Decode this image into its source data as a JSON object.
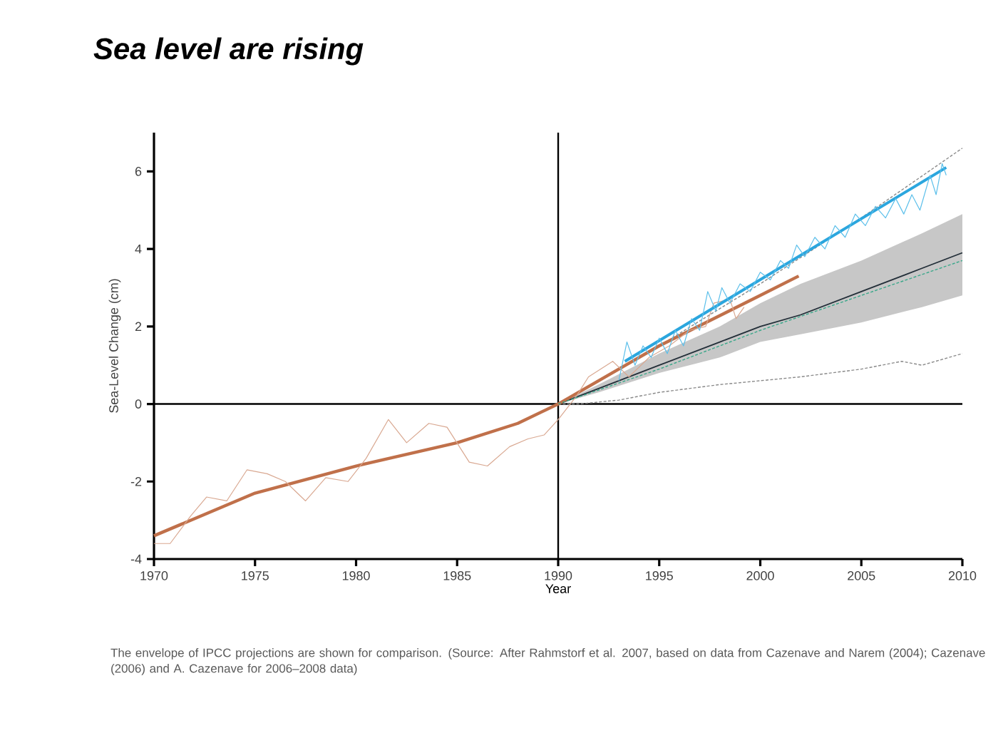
{
  "chart_data": {
    "type": "line",
    "title": "Sea level are rising",
    "xlabel": "Year",
    "ylabel": "Sea-Level Change (cm)",
    "xlim": [
      1970,
      2010
    ],
    "xticks": [
      1970,
      1975,
      1980,
      1985,
      1990,
      1995,
      2000,
      2005,
      2010
    ],
    "ylim": [
      -4,
      7
    ],
    "yticks": [
      -4,
      -2,
      0,
      2,
      4,
      6
    ],
    "ref_lines": [
      {
        "axis": "y",
        "value": 0,
        "color": "#000000"
      },
      {
        "axis": "x",
        "value": 1990,
        "color": "#000000"
      }
    ],
    "annotations": [
      "The envelope of IPCC projections are shown for comparison. (Source: After Rahmstorf et al. 2007, based on data from Cazenave and Narem (2004); Cazenave (2006) and A. Cazenave for 2006–2008 data)"
    ],
    "series": [
      {
        "color": "#222e38",
        "x": [
          1990,
          1992,
          1995,
          1998,
          2000,
          2002,
          2005,
          2008,
          2010
        ],
        "values": [
          0,
          0.4,
          1.0,
          1.6,
          2.0,
          2.3,
          2.9,
          3.5,
          3.9
        ],
        "lower": [
          0,
          0.3,
          0.8,
          1.2,
          1.6,
          1.8,
          2.1,
          2.5,
          2.8
        ],
        "upper": [
          0,
          0.5,
          1.3,
          2.0,
          2.6,
          3.1,
          3.7,
          4.4,
          4.9
        ]
      },
      {
        "color": "#8a8a8a",
        "line_style": "dashed",
        "x": [
          1990,
          1995,
          2000,
          2005,
          2010
        ],
        "values": [
          0,
          1.5,
          3.1,
          4.8,
          6.6
        ]
      },
      {
        "color": "#8a8a8a",
        "line_style": "dashed",
        "x": [
          1990,
          1991,
          1993,
          1995,
          1998,
          2000,
          2002,
          2005,
          2007,
          2008,
          2010
        ],
        "values": [
          0,
          0,
          0.1,
          0.3,
          0.5,
          0.6,
          0.7,
          0.9,
          1.1,
          1.0,
          1.3
        ]
      },
      {
        "color": "#c0704a",
        "x": [
          1970,
          1975,
          1980,
          1985,
          1988,
          1990,
          1995,
          2000,
          2001.9
        ],
        "values": [
          -3.4,
          -2.3,
          -1.6,
          -1.0,
          -0.5,
          0,
          1.5,
          2.8,
          3.3
        ]
      },
      {
        "color": "#d9a891",
        "x": [
          1970,
          1970.8,
          1971.8,
          1972.6,
          1973.6,
          1974.6,
          1975.6,
          1976.5,
          1977.5,
          1978.5,
          1979.6,
          1980.5,
          1981.6,
          1982.5,
          1983.6,
          1984.5,
          1985.6,
          1986.5,
          1987.6,
          1988.5,
          1989.3,
          1990.0,
          1990.9,
          1991.5,
          1992.7,
          1993.5,
          1994.5,
          1995.5,
          1996.5,
          1997.3,
          1997.7,
          1998.5,
          1998.8,
          1999.2
        ],
        "values": [
          -3.6,
          -3.6,
          -2.9,
          -2.4,
          -2.5,
          -1.7,
          -1.8,
          -2.0,
          -2.5,
          -1.9,
          -2.0,
          -1.4,
          -0.4,
          -1.0,
          -0.5,
          -0.6,
          -1.5,
          -1.6,
          -1.1,
          -0.9,
          -0.8,
          -0.4,
          0.2,
          0.7,
          1.1,
          0.7,
          1.2,
          1.5,
          1.9,
          2.0,
          2.6,
          2.7,
          2.2,
          2.5
        ]
      },
      {
        "color": "#2ba6de",
        "x": [
          1993.3,
          2009.2
        ],
        "values": [
          1.1,
          6.1
        ]
      },
      {
        "color": "#5bbfea",
        "x": [
          1993.0,
          1993.4,
          1993.8,
          1994.2,
          1994.6,
          1995.0,
          1995.4,
          1995.8,
          1996.2,
          1996.6,
          1997.0,
          1997.4,
          1997.8,
          1998.1,
          1998.5,
          1999.0,
          1999.5,
          2000.0,
          2000.5,
          2001.0,
          2001.4,
          2001.8,
          2002.2,
          2002.7,
          2003.2,
          2003.7,
          2004.2,
          2004.7,
          2005.2,
          2005.7,
          2006.2,
          2006.7,
          2007.1,
          2007.5,
          2007.9,
          2008.4,
          2008.7,
          2009.0,
          2009.2
        ],
        "values": [
          0.6,
          1.6,
          1.0,
          1.5,
          1.2,
          1.7,
          1.3,
          1.9,
          1.5,
          2.2,
          1.9,
          2.9,
          2.4,
          3.0,
          2.6,
          3.1,
          2.9,
          3.4,
          3.2,
          3.7,
          3.5,
          4.1,
          3.8,
          4.3,
          4.0,
          4.6,
          4.3,
          4.9,
          4.6,
          5.1,
          4.8,
          5.3,
          4.9,
          5.4,
          5.0,
          5.9,
          5.4,
          6.2,
          5.9
        ]
      },
      {
        "color": "#3aa88a",
        "line_style": "dashed",
        "x": [
          1990,
          1995,
          2000,
          2005,
          2010
        ],
        "values": [
          0,
          0.9,
          1.9,
          2.8,
          3.7
        ]
      }
    ]
  }
}
